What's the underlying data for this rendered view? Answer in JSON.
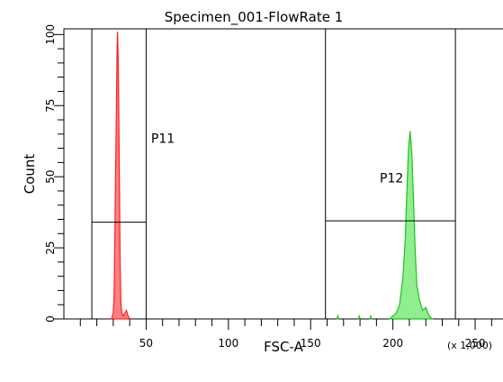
{
  "chart_data": {
    "type": "histogram",
    "title": "Specimen_001-FlowRate 1",
    "xlabel": "FSC-A",
    "ylabel": "Count",
    "x_scale_note": "(x 1,000)",
    "xlim": [
      0,
      262
    ],
    "ylim": [
      0,
      102
    ],
    "x_ticks": [
      50,
      100,
      150,
      200,
      250
    ],
    "y_ticks": [
      0,
      25,
      50,
      75,
      100
    ],
    "grid": false,
    "series": [
      {
        "color": "#ff2020",
        "fill": "#ff8080",
        "points": [
          [
            29,
            0
          ],
          [
            30,
            2
          ],
          [
            30.5,
            8
          ],
          [
            31,
            30
          ],
          [
            31.5,
            55
          ],
          [
            32,
            78
          ],
          [
            32.3,
            95
          ],
          [
            32.6,
            101
          ],
          [
            33,
            92
          ],
          [
            33.4,
            70
          ],
          [
            33.8,
            45
          ],
          [
            34.2,
            20
          ],
          [
            34.6,
            6
          ],
          [
            35.2,
            2
          ],
          [
            36,
            1
          ],
          [
            38,
            3
          ],
          [
            39,
            1
          ],
          [
            40,
            0
          ]
        ]
      },
      {
        "color": "#20c020",
        "fill": "#90ee90",
        "points": [
          [
            198,
            0
          ],
          [
            200,
            1
          ],
          [
            202,
            2
          ],
          [
            204,
            5
          ],
          [
            206,
            14
          ],
          [
            207.5,
            28
          ],
          [
            208.5,
            45
          ],
          [
            209.5,
            60
          ],
          [
            210.5,
            66
          ],
          [
            211.5,
            58
          ],
          [
            212.5,
            42
          ],
          [
            213.5,
            25
          ],
          [
            214.5,
            12
          ],
          [
            216,
            7
          ],
          [
            218,
            3
          ],
          [
            220,
            4
          ],
          [
            222,
            1
          ],
          [
            224,
            0
          ]
        ]
      },
      {
        "color": "#20c020",
        "fill": "#90ee90",
        "points": [
          [
            166,
            0
          ],
          [
            166.5,
            1
          ],
          [
            167,
            0
          ]
        ]
      },
      {
        "color": "#20c020",
        "fill": "#90ee90",
        "points": [
          [
            179,
            0
          ],
          [
            179.5,
            1
          ],
          [
            180,
            0
          ]
        ]
      },
      {
        "color": "#20c020",
        "fill": "#90ee90",
        "points": [
          [
            186,
            0
          ],
          [
            186.5,
            1
          ],
          [
            187,
            0
          ]
        ]
      }
    ],
    "gates": [
      {
        "label": "P11",
        "x_range": [
          17,
          50
        ],
        "y_level": 34,
        "label_pos": [
          53,
          62
        ]
      },
      {
        "label": "P12",
        "x_range": [
          159,
          238
        ],
        "y_level": 34.5,
        "label_pos": [
          192,
          48
        ]
      }
    ]
  }
}
